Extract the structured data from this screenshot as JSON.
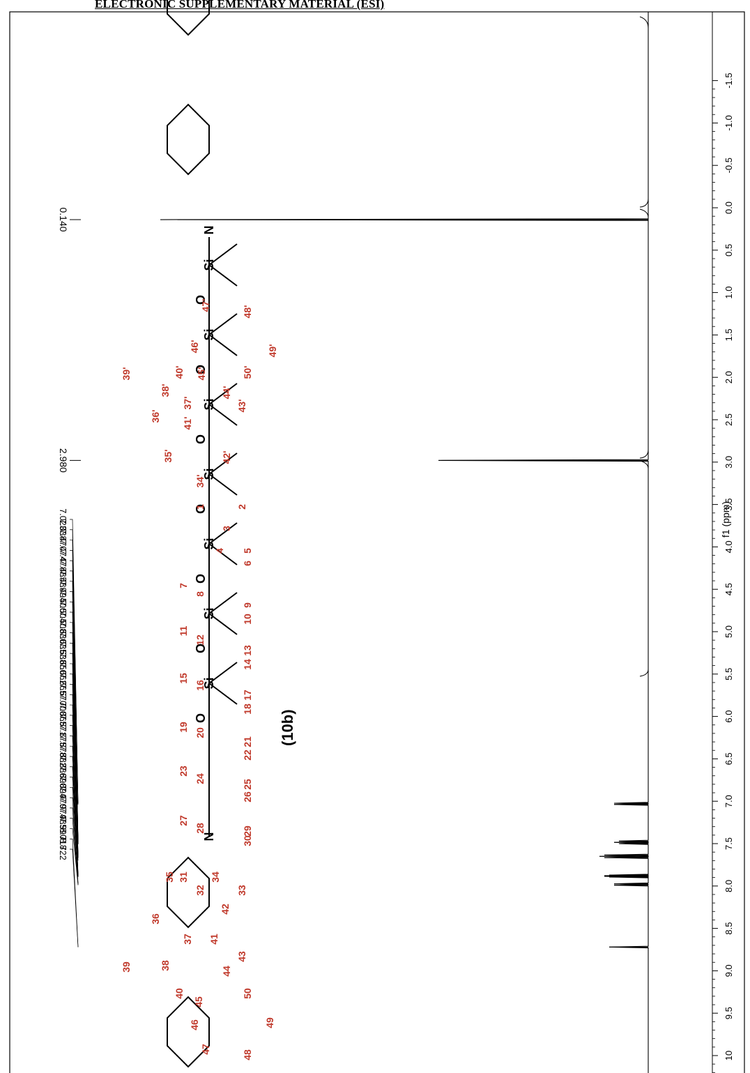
{
  "header": {
    "title": "ELECTRONIC SUPPLEMENTARY MATERIAL (ESI)"
  },
  "chart_data": {
    "type": "line",
    "orientation": "rotated-90",
    "x_axis": {
      "label": "f1 (ppm)",
      "range": [
        -1.8,
        10.0
      ],
      "ticks": [
        "-1.5",
        "-1.0",
        "-0.5",
        "0.0",
        "0.5",
        "1.0",
        "1.5",
        "2.0",
        "2.5",
        "3.0",
        "3.5",
        "4.0",
        "4.5",
        "5.0",
        "5.5",
        "6.0",
        "6.5",
        "7.0",
        "7.5",
        "8.0",
        "8.5",
        "9.0",
        "9.5",
        "10"
      ]
    },
    "peaks": [
      {
        "ppm": 0.14,
        "intensity": 1.0
      },
      {
        "ppm": 2.98,
        "intensity": 0.43
      },
      {
        "ppm": 7.023,
        "intensity": 0.07
      },
      {
        "ppm": 7.038,
        "intensity": 0.07
      },
      {
        "ppm": 7.47,
        "intensity": 0.06
      },
      {
        "ppm": 7.485,
        "intensity": 0.07
      },
      {
        "ppm": 7.5,
        "intensity": 0.06
      },
      {
        "ppm": 7.635,
        "intensity": 0.09
      },
      {
        "ppm": 7.65,
        "intensity": 0.1
      },
      {
        "ppm": 7.665,
        "intensity": 0.09
      },
      {
        "ppm": 7.871,
        "intensity": 0.08
      },
      {
        "ppm": 7.878,
        "intensity": 0.09
      },
      {
        "ppm": 7.886,
        "intensity": 0.09
      },
      {
        "ppm": 7.894,
        "intensity": 0.08
      },
      {
        "ppm": 7.974,
        "intensity": 0.07
      },
      {
        "ppm": 7.99,
        "intensity": 0.07
      },
      {
        "ppm": 8.72,
        "intensity": 0.08
      }
    ],
    "peak_labels": {
      "single": [
        "0.140",
        "2.980"
      ],
      "cluster": [
        "7.023",
        "7.038",
        "7.470",
        "7.474",
        "7.478",
        "7.485",
        "7.489",
        "7.494",
        "7.500",
        "7.504",
        "7.508",
        "7.630",
        "7.635",
        "7.638",
        "7.650",
        "7.662",
        "7.665",
        "7.670",
        "7.700",
        "7.865",
        "7.871",
        "7.875",
        "7.878",
        "7.882",
        "7.886",
        "7.890",
        "7.894",
        "7.970",
        "7.974",
        "7.985",
        "7.990",
        "8.718",
        "8.722"
      ]
    },
    "grid": false,
    "legend": "none"
  },
  "structure": {
    "compound_label": "(10b)",
    "atoms_top": [
      "N",
      "O",
      "Si",
      "O",
      "Si",
      "O",
      "Si",
      "O",
      "Si",
      "O",
      "Si",
      "O",
      "Si",
      "O",
      "Si",
      "N"
    ],
    "numbers_top": [
      "1",
      "2",
      "3",
      "4",
      "5",
      "6",
      "7",
      "8",
      "9",
      "10",
      "11",
      "12",
      "13",
      "14",
      "15",
      "16",
      "17",
      "18",
      "19",
      "20",
      "21",
      "22",
      "23",
      "24",
      "25",
      "26",
      "27",
      "28",
      "29",
      "30",
      "31",
      "32",
      "33"
    ],
    "numbers_primed": [
      "34'",
      "35'",
      "36'",
      "37'",
      "38'",
      "39'",
      "40'",
      "41'",
      "42'",
      "43'",
      "44'",
      "45'",
      "46'",
      "47'",
      "48'",
      "49'",
      "50'"
    ],
    "numbers_lower": [
      "34",
      "35",
      "36",
      "37",
      "38",
      "39",
      "40",
      "41",
      "42",
      "43",
      "44",
      "45",
      "46",
      "47",
      "48",
      "49",
      "50"
    ]
  }
}
